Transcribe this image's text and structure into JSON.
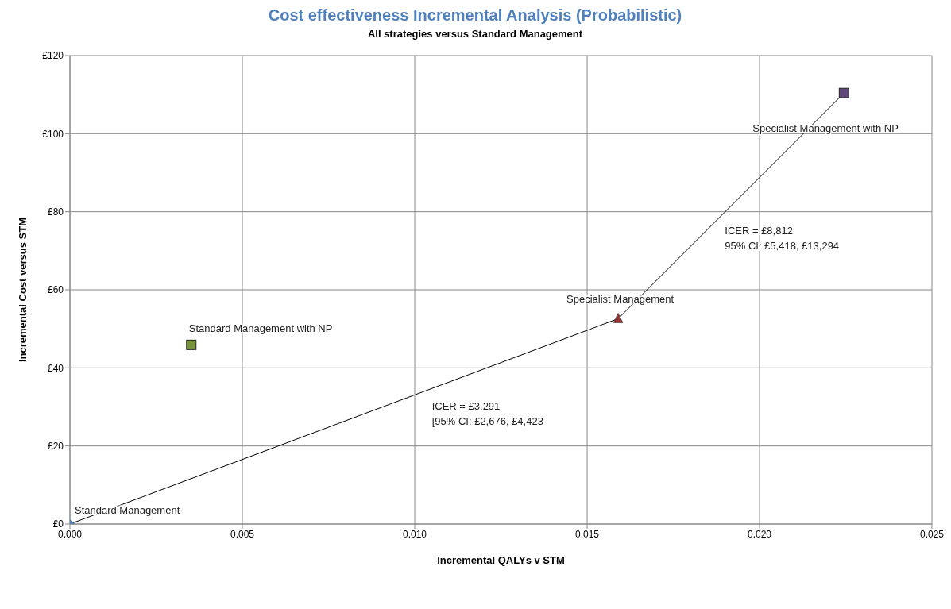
{
  "chart_data": {
    "type": "scatter",
    "title": "Cost effectiveness Incremental Analysis (Probabilistic)",
    "subtitle": "All strategies versus Standard Management",
    "xlabel": "Incremental QALYs v STM",
    "ylabel": "Incremental Cost versus STM",
    "xlim": [
      0,
      0.025
    ],
    "xticks": [
      {
        "value": 0,
        "label": "0.000"
      },
      0.005,
      {
        "value": 0.01,
        "label": "0.010"
      },
      0.015,
      {
        "value": 0.02,
        "label": "0.020"
      },
      0.025
    ],
    "ylim": [
      0,
      120
    ],
    "yticks": [
      {
        "value": 0,
        "label": "£0"
      },
      {
        "value": 20,
        "label": "£20"
      },
      {
        "value": 40,
        "label": "£40"
      },
      {
        "value": 60,
        "label": "£60"
      },
      {
        "value": 80,
        "label": "£80"
      },
      {
        "value": 100,
        "label": "£100"
      },
      {
        "value": 120,
        "label": "£120"
      }
    ],
    "grid": true,
    "series": [
      {
        "type": "line",
        "color": "#000000",
        "marker": "none",
        "x": [
          0,
          0.0159,
          0.02245
        ],
        "values": [
          0,
          52.6,
          110.4
        ]
      },
      {
        "color": "#4f81bd",
        "marker": "diamond",
        "x": [
          0
        ],
        "values": [
          0
        ]
      },
      {
        "color": "#77933c",
        "marker": "square",
        "x": [
          0.00352
        ],
        "values": [
          45.9
        ]
      },
      {
        "color": "#953735",
        "marker": "triangle",
        "x": [
          0.0159
        ],
        "values": [
          52.6
        ]
      },
      {
        "color": "#5f497a",
        "marker": "square",
        "x": [
          0.02245
        ],
        "values": [
          110.4
        ]
      }
    ],
    "annotations": [
      {
        "text": "Standard Management",
        "x": 0,
        "y": 0
      },
      {
        "text": "Standard Management with NP",
        "x": 0.00352,
        "y": 45.9
      },
      {
        "text": "Specialist Management",
        "x": 0.0159,
        "y": 52.6
      },
      {
        "text": "Specialist Management with NP",
        "x": 0.02245,
        "y": 110.4
      },
      {
        "text": "ICER = £3,291\n[95% CI: £2,676, £4,423",
        "x": 0.0105,
        "y": 34.7
      },
      {
        "text": "ICER = £8,812\n95% CI: £5,418, £13,294",
        "x": 0.0192,
        "y": 81.5
      }
    ]
  }
}
